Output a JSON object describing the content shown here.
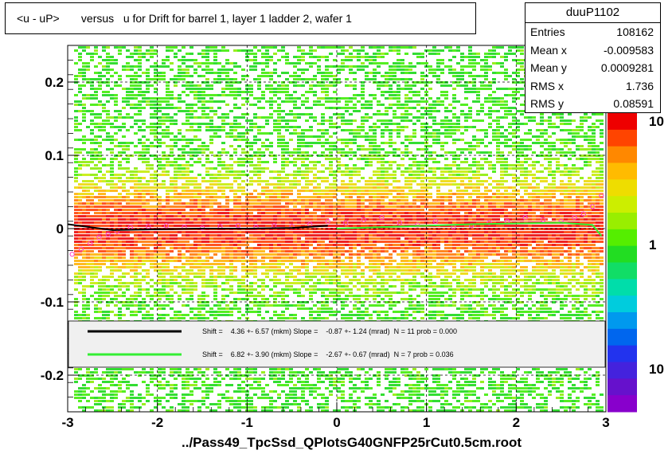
{
  "chart_data": {
    "type": "heatmap",
    "title": "<u - uP>       versus   u for Drift for barrel 1, layer 1 ladder 2, wafer 1",
    "x_ticks": [
      "-3",
      "-2",
      "-1",
      "0",
      "1",
      "2",
      "3"
    ],
    "y_ticks": [
      "-0.2",
      "-0.1",
      "0",
      "0.1",
      "0.2"
    ],
    "xlim": [
      -3,
      3
    ],
    "ylim": [
      -0.25,
      0.25
    ],
    "palette_ticks": [
      "10",
      "1",
      "10"
    ],
    "grid": true,
    "fit_line_black": {
      "x": [
        -3.0,
        -2.5,
        -2.0,
        -1.5,
        -1.0,
        -0.5,
        -0.1
      ],
      "y": [
        0.006,
        -0.002,
        -0.001,
        0.0,
        0.0,
        0.001,
        0.004
      ]
    },
    "fit_line_green": {
      "x": [
        0.0,
        0.5,
        1.0,
        1.5,
        2.0,
        2.5,
        2.85,
        2.95
      ],
      "y": [
        0.0,
        0.002,
        0.004,
        0.006,
        0.007,
        0.008,
        0.005,
        -0.01
      ]
    },
    "profile_points": {
      "x": [
        -2.95,
        -2.85,
        -2.75,
        -2.65,
        -2.55,
        -2.45,
        -2.3,
        -2.1,
        -1.9,
        -1.7,
        -1.5,
        -1.3,
        -1.1,
        -0.9,
        -0.7,
        -0.5,
        -0.3,
        -0.1,
        0.1,
        0.3,
        0.5,
        0.7,
        0.9,
        1.1,
        1.3,
        1.5,
        1.7,
        1.9,
        2.1,
        2.3,
        2.5,
        2.65,
        2.75,
        2.85,
        2.95
      ],
      "y": [
        -0.035,
        -0.028,
        -0.02,
        -0.012,
        -0.008,
        -0.004,
        0.002,
        0.003,
        0.004,
        0.002,
        0.001,
        0.003,
        0.004,
        0.002,
        0.004,
        0.003,
        0.006,
        0.01,
        0.008,
        0.012,
        0.015,
        0.008,
        0.005,
        0.01,
        0.002,
        0.004,
        0.008,
        0.01,
        0.015,
        0.012,
        0.01,
        0.015,
        0.02,
        0.03,
        0.045
      ]
    }
  },
  "title": "<u - uP>       versus   u for Drift for barrel 1, layer 1 ladder 2, wafer 1",
  "stats": {
    "name": "duuP1102",
    "rows": [
      {
        "label": "Entries",
        "value": "108162"
      },
      {
        "label": "Mean x",
        "value": "-0.009583"
      },
      {
        "label": "Mean y",
        "value": "0.0009281"
      },
      {
        "label": "RMS x",
        "value": "1.736"
      },
      {
        "label": "RMS y",
        "value": "0.08591"
      }
    ]
  },
  "legend": {
    "black": "Shift =    4.36 +- 6.57 (mkm) Slope =    -0.87 +- 1.24 (mrad)  N = 11 prob = 0.000",
    "green": "Shift =    6.82 +- 3.90 (mkm) Slope =    -2.67 +- 0.67 (mrad)  N = 7 prob = 0.036",
    "colors": {
      "black": "#000000",
      "green": "#33ee33"
    }
  },
  "footer": "../Pass49_TpcSsd_QPlotsG40GNFP25rCut0.5cm.root"
}
